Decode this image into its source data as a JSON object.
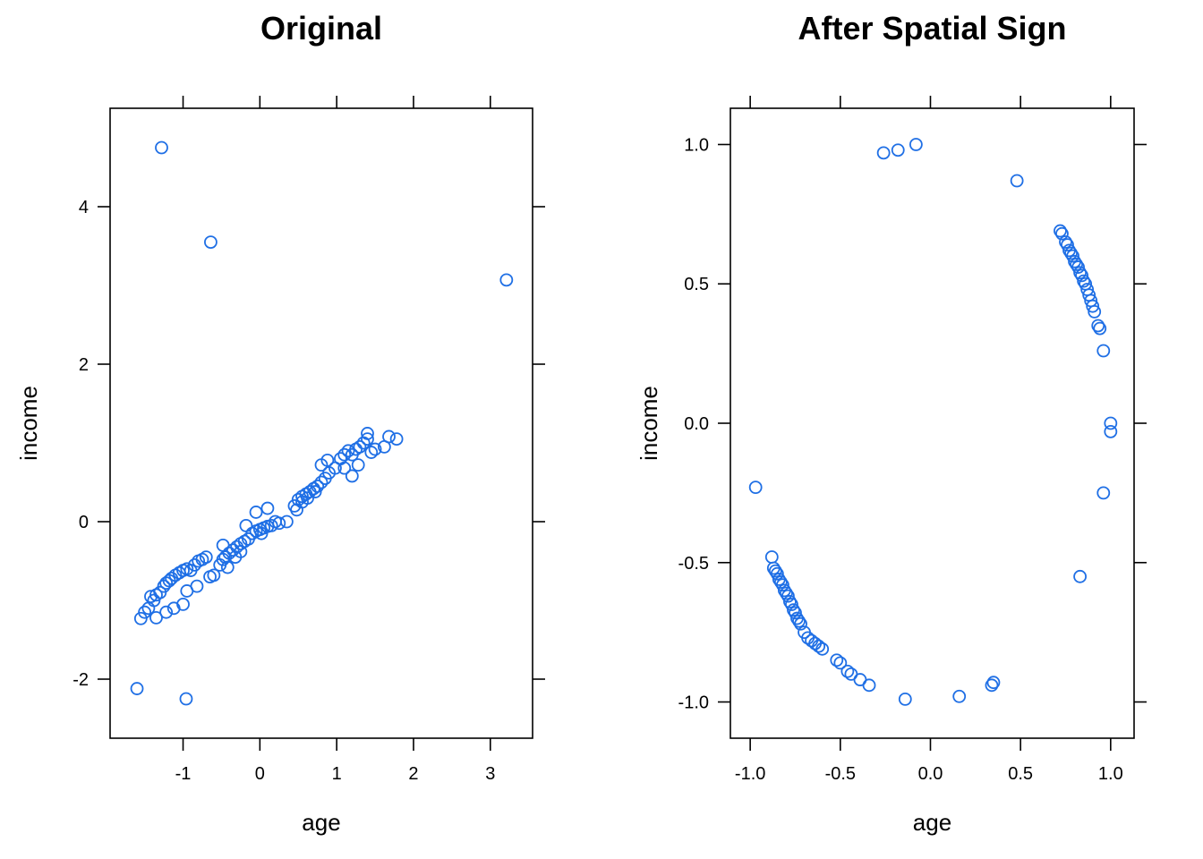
{
  "point_color": "#1f6fe5",
  "chart_data": [
    {
      "type": "scatter",
      "title": "Original",
      "xlabel": "age",
      "ylabel": "income",
      "xlim": [
        -1.95,
        3.55
      ],
      "ylim": [
        -2.75,
        5.25
      ],
      "xticks": [
        -1,
        0,
        1,
        2,
        3
      ],
      "yticks": [
        -2,
        0,
        2,
        4
      ],
      "xtick_labels": [
        "-1",
        "0",
        "1",
        "2",
        "3"
      ],
      "ytick_labels": [
        "-2",
        "0",
        "2",
        "4"
      ],
      "grid": false,
      "x": [
        -1.28,
        -0.64,
        3.21,
        -1.6,
        -0.96,
        -1.55,
        -1.5,
        -1.45,
        -1.42,
        -1.38,
        -1.35,
        -1.3,
        -1.25,
        -1.22,
        -1.18,
        -1.15,
        -1.1,
        -1.05,
        -1.0,
        -0.95,
        -0.9,
        -0.85,
        -0.8,
        -0.75,
        -0.7,
        -0.65,
        -0.6,
        -1.35,
        -1.22,
        -1.12,
        -1.0,
        -0.95,
        -0.82,
        -0.52,
        -0.48,
        -0.45,
        -0.4,
        -0.35,
        -0.3,
        -0.25,
        -0.2,
        -0.15,
        -0.1,
        -0.05,
        0.0,
        0.05,
        0.1,
        0.15,
        0.2,
        0.25,
        0.35,
        -0.48,
        -0.42,
        -0.32,
        -0.25,
        -0.18,
        -0.05,
        0.02,
        0.1,
        0.45,
        0.5,
        0.55,
        0.6,
        0.65,
        0.7,
        0.75,
        0.8,
        0.85,
        0.9,
        0.98,
        0.48,
        0.55,
        0.62,
        0.72,
        0.8,
        0.88,
        1.05,
        1.1,
        1.15,
        1.2,
        1.25,
        1.3,
        1.35,
        1.4,
        1.45,
        1.5,
        1.62,
        1.68,
        1.78,
        1.1,
        1.2,
        1.28,
        1.4
      ],
      "y": [
        4.75,
        3.55,
        3.07,
        -2.12,
        -2.25,
        -1.23,
        -1.15,
        -1.1,
        -0.95,
        -1.0,
        -0.93,
        -0.9,
        -0.82,
        -0.78,
        -0.75,
        -0.72,
        -0.68,
        -0.65,
        -0.62,
        -0.6,
        -0.62,
        -0.55,
        -0.5,
        -0.48,
        -0.45,
        -0.7,
        -0.68,
        -1.22,
        -1.15,
        -1.1,
        -1.05,
        -0.88,
        -0.82,
        -0.55,
        -0.48,
        -0.45,
        -0.4,
        -0.36,
        -0.32,
        -0.28,
        -0.25,
        -0.22,
        -0.15,
        -0.12,
        -0.1,
        -0.08,
        -0.06,
        -0.05,
        0.0,
        -0.02,
        0.0,
        -0.3,
        -0.58,
        -0.45,
        -0.38,
        -0.05,
        0.12,
        -0.15,
        0.17,
        0.2,
        0.28,
        0.32,
        0.35,
        0.38,
        0.42,
        0.45,
        0.5,
        0.55,
        0.62,
        0.68,
        0.15,
        0.25,
        0.3,
        0.38,
        0.72,
        0.78,
        0.8,
        0.85,
        0.9,
        0.85,
        0.92,
        0.95,
        1.0,
        1.05,
        0.88,
        0.92,
        0.95,
        1.08,
        1.05,
        0.68,
        0.58,
        0.72,
        1.12
      ]
    },
    {
      "type": "scatter",
      "title": "After Spatial Sign",
      "xlabel": "age",
      "ylabel": "income",
      "xlim": [
        -1.11,
        1.13
      ],
      "ylim": [
        -1.13,
        1.13
      ],
      "xticks": [
        -1.0,
        -0.5,
        0.0,
        0.5,
        1.0
      ],
      "yticks": [
        -1.0,
        -0.5,
        0.0,
        0.5,
        1.0
      ],
      "xtick_labels": [
        "-1.0",
        "-0.5",
        "0.0",
        "0.5",
        "1.0"
      ],
      "ytick_labels": [
        "-1.0",
        "-0.5",
        "0.0",
        "0.5",
        "1.0"
      ],
      "grid": false,
      "x": [
        -0.26,
        -0.18,
        -0.08,
        0.48,
        0.72,
        0.73,
        0.75,
        0.76,
        0.77,
        0.78,
        0.79,
        0.8,
        0.81,
        0.82,
        0.83,
        0.84,
        0.85,
        0.86,
        0.87,
        0.88,
        0.89,
        0.9,
        0.91,
        0.93,
        0.94,
        0.96,
        1.0,
        1.0,
        0.96,
        0.83,
        -0.97,
        -0.88,
        -0.87,
        -0.86,
        -0.85,
        -0.84,
        -0.83,
        -0.82,
        -0.81,
        -0.8,
        -0.79,
        -0.78,
        -0.77,
        -0.76,
        -0.75,
        -0.74,
        -0.73,
        -0.72,
        -0.7,
        -0.68,
        -0.66,
        -0.64,
        -0.62,
        -0.6,
        -0.52,
        -0.5,
        -0.46,
        -0.44,
        -0.39,
        -0.34,
        -0.14,
        0.16,
        0.34,
        0.35
      ],
      "y": [
        0.97,
        0.98,
        1.0,
        0.87,
        0.69,
        0.68,
        0.65,
        0.64,
        0.62,
        0.61,
        0.6,
        0.58,
        0.57,
        0.56,
        0.54,
        0.53,
        0.51,
        0.5,
        0.48,
        0.46,
        0.44,
        0.42,
        0.4,
        0.35,
        0.34,
        0.26,
        0.0,
        -0.03,
        -0.25,
        -0.55,
        -0.23,
        -0.48,
        -0.52,
        -0.53,
        -0.54,
        -0.56,
        -0.57,
        -0.58,
        -0.6,
        -0.61,
        -0.62,
        -0.64,
        -0.65,
        -0.67,
        -0.68,
        -0.7,
        -0.71,
        -0.72,
        -0.75,
        -0.77,
        -0.78,
        -0.79,
        -0.8,
        -0.81,
        -0.85,
        -0.86,
        -0.89,
        -0.9,
        -0.92,
        -0.94,
        -0.99,
        -0.98,
        -0.94,
        -0.93
      ]
    }
  ]
}
